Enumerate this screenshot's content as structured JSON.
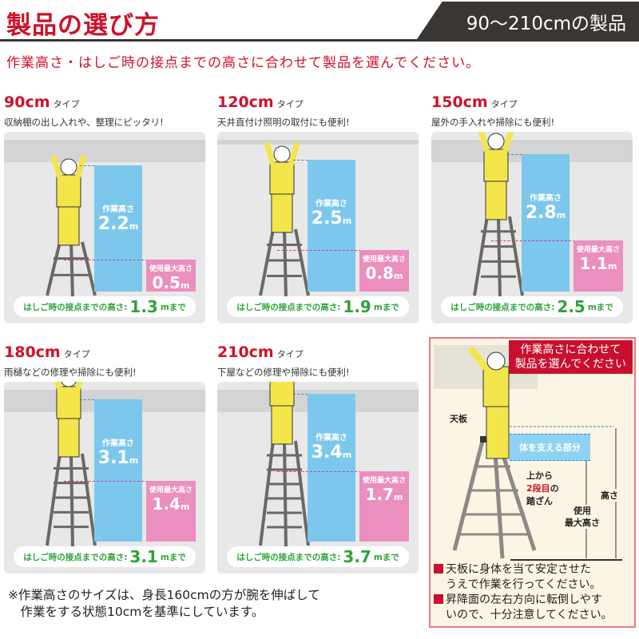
{
  "header": {
    "title": "製品の選び方",
    "tag": "90～210cmの製品"
  },
  "lead": "作業高さ・はしご時の接点までの高さに合わせて製品を選んでください。",
  "labels": {
    "type": "タイプ",
    "work_height": "作業高さ",
    "max_height": "使用最大高さ",
    "contact_prefix": "はしご時の接点までの高さ:",
    "contact_suffix": "mまで",
    "unit": "m"
  },
  "panels": [
    {
      "size": "90cm",
      "desc": "収納棚の出し入れや、整理にピッタリ!",
      "work_height": "2.2",
      "max_height": "0.5",
      "contact": "1.3"
    },
    {
      "size": "120cm",
      "desc": "天井直付け照明の取付にも便利!",
      "work_height": "2.5",
      "max_height": "0.8",
      "contact": "1.9"
    },
    {
      "size": "150cm",
      "desc": "屋外の手入れや掃除にも便利!",
      "work_height": "2.8",
      "max_height": "1.1",
      "contact": "2.5"
    },
    {
      "size": "180cm",
      "desc": "雨樋などの修理や掃除にも便利!",
      "work_height": "3.1",
      "max_height": "1.4",
      "contact": "3.1"
    },
    {
      "size": "210cm",
      "desc": "下屋などの修理や掃除にも便利!",
      "work_height": "3.4",
      "max_height": "1.7",
      "contact": "3.7"
    }
  ],
  "note": [
    "※作業高さのサイズは、身長160cmの方が腕を伸ばして",
    "　作業をする状態10cmを基準にしています。"
  ],
  "side": {
    "heading": [
      "作業高さに合わせて",
      "製品を選んでください"
    ],
    "top_plate": "天板",
    "support": "体を支える部分",
    "step": [
      "上から",
      "2段目",
      "の",
      "踏ざん"
    ],
    "height": "高さ",
    "max_height": [
      "使用",
      "最大高さ"
    ],
    "notes": [
      "天板に身体を当て安定させた",
      "うえで作業を行ってください。",
      "昇降面の左右方向に転倒しやす",
      "いので、十分注意してください。"
    ]
  },
  "colors": {
    "accent": "#d0112b",
    "work": "#7cc8ec",
    "max": "#ea8fbe",
    "contact": "#2fa43a"
  }
}
